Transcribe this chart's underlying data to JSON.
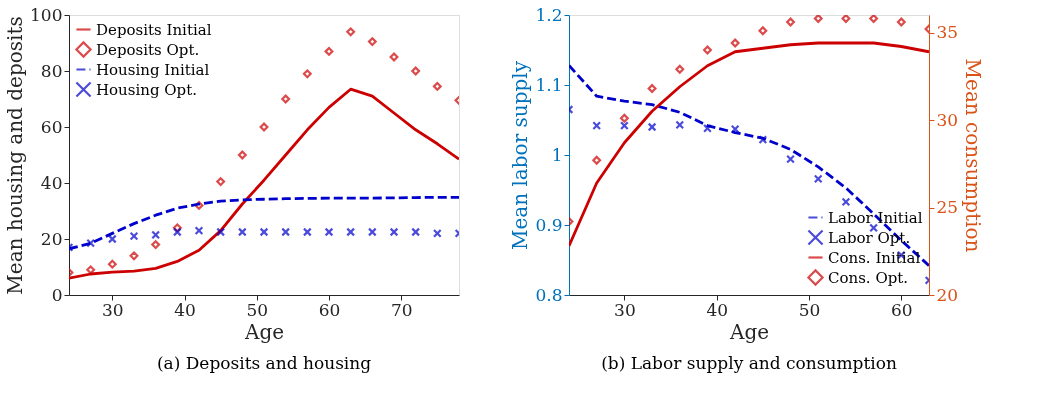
{
  "chart_data": [
    {
      "type": "line",
      "title": "(a) Deposits and housing",
      "xlabel": "Age",
      "ylabel": "Mean housing and deposits",
      "x": [
        24,
        27,
        30,
        33,
        36,
        39,
        42,
        45,
        48,
        51,
        54,
        57,
        60,
        63,
        66,
        69,
        72,
        75,
        78
      ],
      "xlim": [
        24,
        78
      ],
      "xticks": [
        30,
        40,
        50,
        60,
        70
      ],
      "ylim": [
        0,
        100
      ],
      "yticks": [
        0,
        20,
        40,
        60,
        80,
        100
      ],
      "grid": false,
      "legend": "top left",
      "series": [
        {
          "name": "Deposits Initial",
          "line_style": "solid",
          "marker": "none",
          "color": "#cc0000",
          "values": [
            6,
            7.5,
            8.2,
            8.5,
            9.5,
            12,
            16,
            23,
            32.5,
            41,
            50,
            59,
            67,
            73.5,
            71,
            65,
            59,
            54,
            48.5
          ]
        },
        {
          "name": "Deposits Opt.",
          "type": "scatter",
          "marker": "diamond",
          "color": "#cc0000",
          "values": [
            8,
            9,
            11,
            14,
            18,
            24,
            32,
            40.5,
            50,
            60,
            70,
            79,
            87,
            94,
            90.5,
            85,
            80,
            74.5,
            69.5
          ]
        },
        {
          "name": "Housing Initial",
          "line_style": "dashed",
          "marker": "none",
          "color": "#0000cc",
          "values": [
            16.5,
            18.5,
            22,
            25.5,
            28.5,
            31,
            32.5,
            33.5,
            34,
            34.2,
            34.4,
            34.5,
            34.6,
            34.6,
            34.6,
            34.7,
            34.8,
            34.9,
            34.9
          ]
        },
        {
          "name": "Housing Opt.",
          "type": "scatter",
          "marker": "cross",
          "color": "#0000cc",
          "values": [
            17,
            18.5,
            20,
            21,
            21.5,
            22.5,
            23,
            22.5,
            22.5,
            22.5,
            22.5,
            22.5,
            22.5,
            22.5,
            22.5,
            22.5,
            22.5,
            22,
            22
          ]
        }
      ]
    },
    {
      "type": "line",
      "title": "(b) Labor supply and consumption",
      "xlabel": "Age",
      "ylabel": "Mean labor supply",
      "y2label": "Mean consumption",
      "x": [
        24,
        27,
        30,
        33,
        36,
        39,
        42,
        45,
        48,
        51,
        54,
        57,
        60,
        63
      ],
      "xlim": [
        24,
        63
      ],
      "xticks": [
        30,
        40,
        50,
        60
      ],
      "ylim": [
        0.8,
        1.2
      ],
      "yticks": [
        0.8,
        0.9,
        1,
        1.1,
        1.2
      ],
      "y2lim": [
        20,
        36
      ],
      "y2ticks": [
        20,
        25,
        30,
        35
      ],
      "grid": false,
      "legend": "bottom right",
      "series": [
        {
          "name": "Labor Initial",
          "line_style": "dashed",
          "marker": "none",
          "color": "#0000cc",
          "values": [
            1.128,
            1.084,
            1.077,
            1.072,
            1.061,
            1.042,
            1.032,
            1.024,
            1.008,
            0.983,
            0.953,
            0.916,
            0.878,
            0.842
          ]
        },
        {
          "name": "Labor Opt.",
          "type": "scatter",
          "marker": "cross",
          "color": "#0000cc",
          "values": [
            1.065,
            1.042,
            1.042,
            1.04,
            1.043,
            1.038,
            1.037,
            1.022,
            0.994,
            0.966,
            0.933,
            0.896,
            0.857,
            0.821
          ]
        },
        {
          "name": "Cons. Initial",
          "line_style": "solid",
          "marker": "none",
          "axis": "y2",
          "color": "#cc0000",
          "values": [
            22.8,
            26.4,
            28.7,
            30.5,
            31.9,
            33.1,
            33.9,
            34.1,
            34.3,
            34.4,
            34.4,
            34.4,
            34.2,
            33.9
          ]
        },
        {
          "name": "Cons. Opt.",
          "type": "scatter",
          "marker": "diamond",
          "axis": "y2",
          "color": "#cc0000",
          "values": [
            24.2,
            27.7,
            30.1,
            31.8,
            32.9,
            34.0,
            34.4,
            35.1,
            35.6,
            35.8,
            35.8,
            35.8,
            35.6,
            35.2
          ]
        }
      ]
    }
  ]
}
